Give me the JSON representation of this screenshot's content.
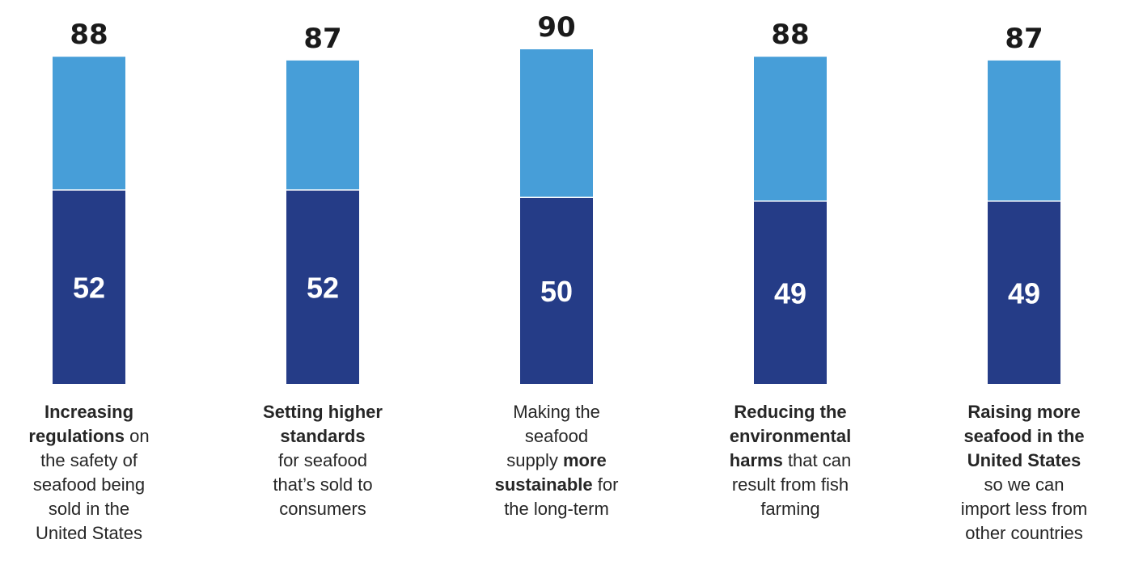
{
  "chart_data": {
    "type": "bar",
    "stacked": true,
    "categories": [
      "Increasing regulations on the safety of seafood being sold in the United States",
      "Setting higher standards for seafood that’s sold to consumers",
      "Making the seafood supply more sustainable for the long-term",
      "Reducing the environmental harms that can result from fish farming",
      "Raising more seafood in the United States so we can import less from other countries"
    ],
    "category_labels": [
      [
        {
          "text": "Increasing",
          "bold": true,
          "br": true
        },
        {
          "text": "regulations",
          "bold": true
        },
        {
          "text": " on",
          "bold": false,
          "br": true
        },
        {
          "text": "the safety of",
          "bold": false,
          "br": true
        },
        {
          "text": "seafood being",
          "bold": false,
          "br": true
        },
        {
          "text": "sold in the",
          "bold": false,
          "br": true
        },
        {
          "text": "United States",
          "bold": false
        }
      ],
      [
        {
          "text": "Setting higher",
          "bold": true,
          "br": true
        },
        {
          "text": "standards",
          "bold": true,
          "br": true
        },
        {
          "text": "for seafood",
          "bold": false,
          "br": true
        },
        {
          "text": "that’s sold to",
          "bold": false,
          "br": true
        },
        {
          "text": "consumers",
          "bold": false
        }
      ],
      [
        {
          "text": "Making the",
          "bold": false,
          "br": true
        },
        {
          "text": "seafood",
          "bold": false,
          "br": true
        },
        {
          "text": "supply ",
          "bold": false
        },
        {
          "text": "more",
          "bold": true,
          "br": true
        },
        {
          "text": "sustainable",
          "bold": true
        },
        {
          "text": " for",
          "bold": false,
          "br": true
        },
        {
          "text": "the long-term",
          "bold": false
        }
      ],
      [
        {
          "text": "Reducing the",
          "bold": true,
          "br": true
        },
        {
          "text": "environmental",
          "bold": true,
          "br": true
        },
        {
          "text": "harms",
          "bold": true
        },
        {
          "text": " that can",
          "bold": false,
          "br": true
        },
        {
          "text": "result from fish",
          "bold": false,
          "br": true
        },
        {
          "text": "farming",
          "bold": false
        }
      ],
      [
        {
          "text": "Raising more",
          "bold": true,
          "br": true
        },
        {
          "text": "seafood in the",
          "bold": true,
          "br": true
        },
        {
          "text": "United States",
          "bold": true,
          "br": true
        },
        {
          "text": "so we can",
          "bold": false,
          "br": true
        },
        {
          "text": "import less from",
          "bold": false,
          "br": true
        },
        {
          "text": "other countries",
          "bold": false
        }
      ]
    ],
    "series": [
      {
        "values": [
          52,
          52,
          50,
          49,
          49
        ],
        "color": "#253c87"
      },
      {
        "values": [
          36,
          35,
          40,
          39,
          38
        ],
        "color": "#479ed8"
      }
    ],
    "totals": [
      88,
      87,
      90,
      88,
      87
    ],
    "ylim": [
      0,
      90
    ],
    "grid": false,
    "legend": "none"
  }
}
